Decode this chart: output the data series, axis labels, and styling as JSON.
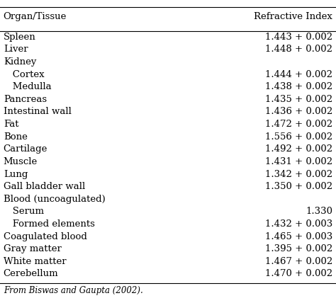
{
  "col1_header": "Organ/Tissue",
  "col2_header": "Refractive Index",
  "rows": [
    {
      "tissue": "Spleen",
      "indent": false,
      "value": "1.443 + 0.002"
    },
    {
      "tissue": "Liver",
      "indent": false,
      "value": "1.448 + 0.002"
    },
    {
      "tissue": "Kidney",
      "indent": false,
      "value": ""
    },
    {
      "tissue": "   Cortex",
      "indent": true,
      "value": "1.444 + 0.002"
    },
    {
      "tissue": "   Medulla",
      "indent": true,
      "value": "1.438 + 0.002"
    },
    {
      "tissue": "Pancreas",
      "indent": false,
      "value": "1.435 + 0.002"
    },
    {
      "tissue": "Intestinal wall",
      "indent": false,
      "value": "1.436 + 0.002"
    },
    {
      "tissue": "Fat",
      "indent": false,
      "value": "1.472 + 0.002"
    },
    {
      "tissue": "Bone",
      "indent": false,
      "value": "1.556 + 0.002"
    },
    {
      "tissue": "Cartilage",
      "indent": false,
      "value": "1.492 + 0.002"
    },
    {
      "tissue": "Muscle",
      "indent": false,
      "value": "1.431 + 0.002"
    },
    {
      "tissue": "Lung",
      "indent": false,
      "value": "1.342 + 0.002"
    },
    {
      "tissue": "Gall bladder wall",
      "indent": false,
      "value": "1.350 + 0.002"
    },
    {
      "tissue": "Blood (uncoagulated)",
      "indent": false,
      "value": ""
    },
    {
      "tissue": "   Serum",
      "indent": true,
      "value": "1.330"
    },
    {
      "tissue": "   Formed elements",
      "indent": true,
      "value": "1.432 + 0.003"
    },
    {
      "tissue": "Coagulated blood",
      "indent": false,
      "value": "1.465 + 0.003"
    },
    {
      "tissue": "Gray matter",
      "indent": false,
      "value": "1.395 + 0.002"
    },
    {
      "tissue": "White matter",
      "indent": false,
      "value": "1.467 + 0.002"
    },
    {
      "tissue": "Cerebellum",
      "indent": false,
      "value": "1.470 + 0.002"
    }
  ],
  "footnote": "From Biswas and Gaupta (2002).",
  "bg_color": "#ffffff",
  "text_color": "#000000",
  "font_size": 9.5,
  "header_font_size": 9.5,
  "footnote_font_size": 8.5
}
